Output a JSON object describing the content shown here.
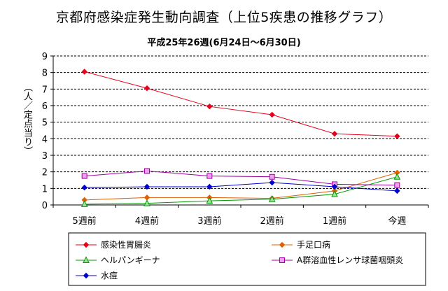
{
  "chart_data": {
    "type": "line",
    "title": "京都府感染症発生動向調査（上位5疾患の推移グラフ）",
    "subtitle": "平成25年26週(6月24日～6月30日)",
    "xlabel": "",
    "ylabel": "（人／定点当り）",
    "ylim": [
      0,
      9
    ],
    "yticks": [
      0,
      1,
      2,
      3,
      4,
      5,
      6,
      7,
      8,
      9
    ],
    "grid": true,
    "legend_position": "bottom",
    "categories": [
      "5週前",
      "4週前",
      "3週前",
      "2週前",
      "1週前",
      "今週"
    ],
    "series": [
      {
        "name": "感染性胃腸炎",
        "color": "#e8001c",
        "marker": "diamond",
        "values": [
          8.05,
          7.05,
          5.95,
          5.45,
          4.3,
          4.15
        ]
      },
      {
        "name": "手足口病",
        "color": "#e06000",
        "marker": "diamond",
        "values": [
          0.3,
          0.45,
          0.45,
          0.4,
          0.85,
          1.95
        ]
      },
      {
        "name": "ヘルパンギーナ",
        "color": "#009a00",
        "marker": "triangle",
        "values": [
          0.05,
          0.1,
          0.25,
          0.35,
          0.65,
          1.7
        ]
      },
      {
        "name": "A群溶血性レンサ球菌咽頭炎",
        "color": "#a000a0",
        "marker": "square",
        "values": [
          1.75,
          2.05,
          1.75,
          1.7,
          1.25,
          1.2
        ]
      },
      {
        "name": "水痘",
        "color": "#0000cc",
        "marker": "diamond",
        "values": [
          1.05,
          1.1,
          1.1,
          1.35,
          1.1,
          0.85
        ]
      }
    ]
  }
}
